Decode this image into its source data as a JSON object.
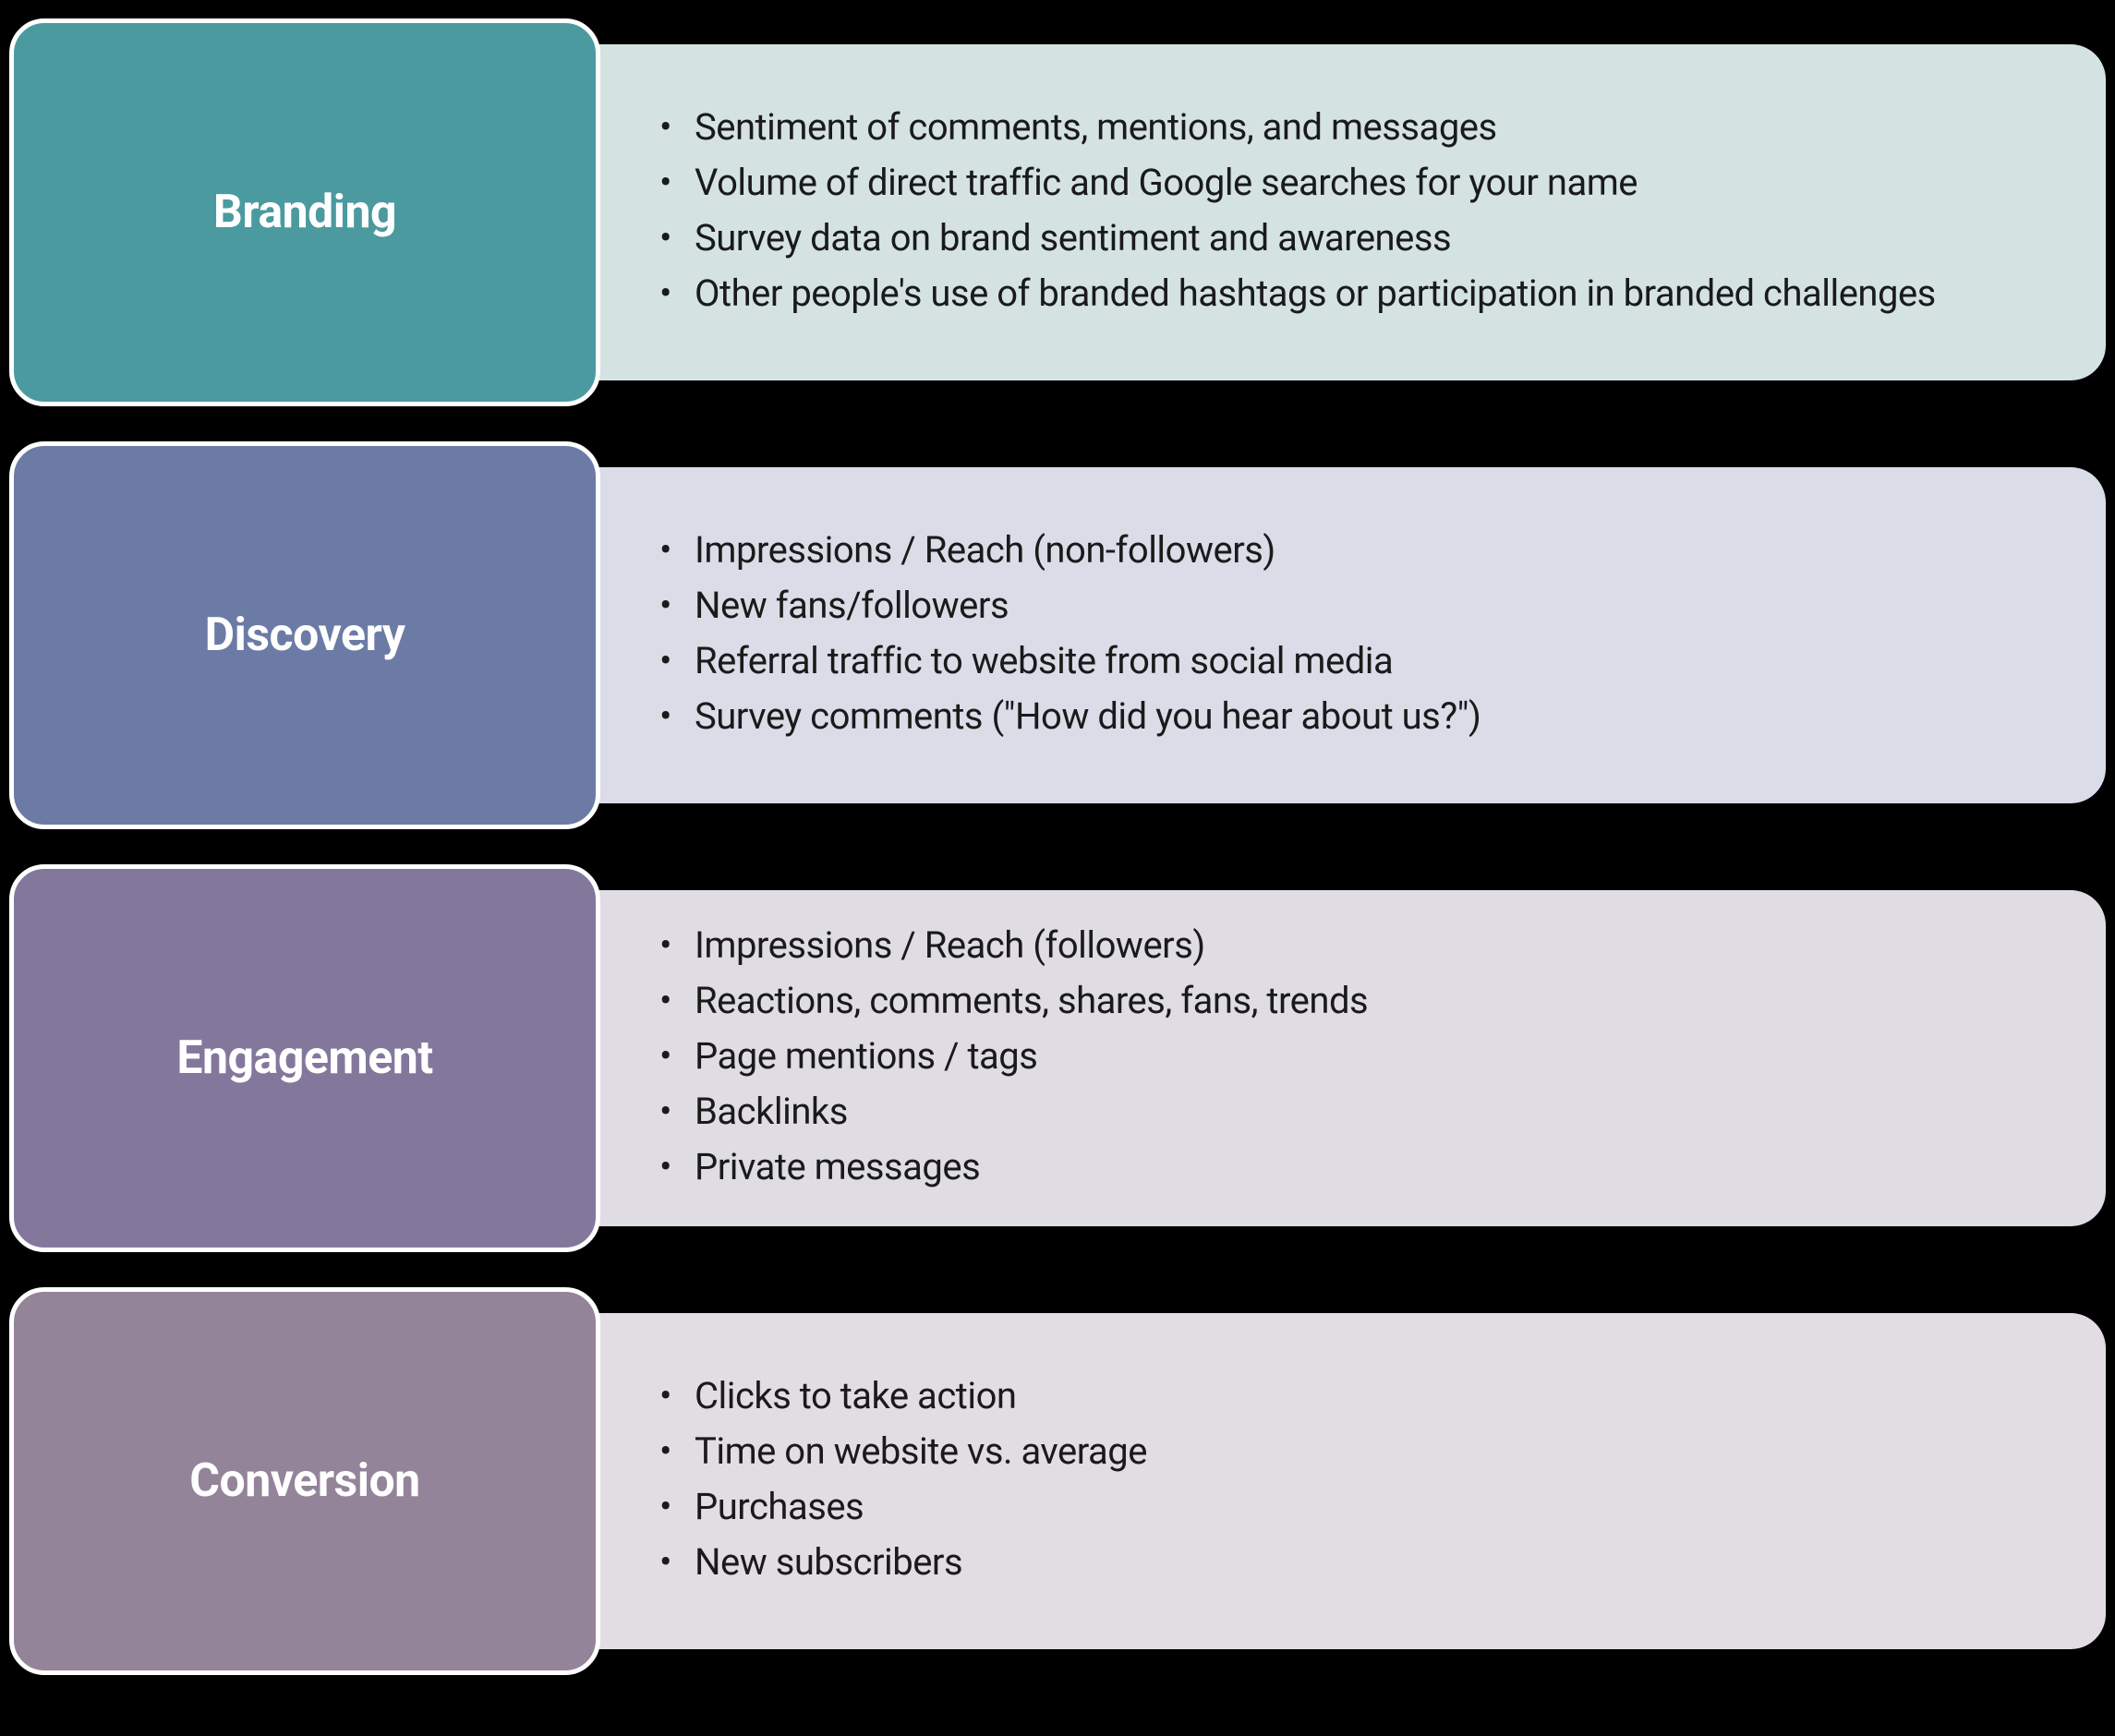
{
  "rows": [
    {
      "id": "branding",
      "label": "Branding",
      "label_bg": "#4b9aa0",
      "content_bg": "#d4e3e2",
      "items": [
        "Sentiment of comments, mentions, and messages",
        "Volume of direct traffic and Google searches for your name",
        "Survey data on brand sentiment and awareness",
        "Other people's use of branded hashtags or participation in branded challenges"
      ]
    },
    {
      "id": "discovery",
      "label": "Discovery",
      "label_bg": "#6c7ba5",
      "content_bg": "#dadde8",
      "items": [
        "Impressions / Reach (non-followers)",
        "New fans/followers",
        "Referral traffic to website from social media",
        "Survey comments (\"How did you hear about us?\")"
      ]
    },
    {
      "id": "engagement",
      "label": "Engagement",
      "label_bg": "#83789c",
      "content_bg": "#dfdce4",
      "items": [
        "Impressions / Reach (followers)",
        "Reactions, comments, shares, fans, trends",
        "Page mentions / tags",
        "Backlinks",
        "Private messages"
      ]
    },
    {
      "id": "conversion",
      "label": "Conversion",
      "label_bg": "#94849a",
      "content_bg": "#e2dde3",
      "items": [
        "Clicks to take action",
        "Time on website vs. average",
        "Purchases",
        "New subscribers"
      ]
    }
  ],
  "border_color": "#ffffff",
  "text_color": "#1a1a1a",
  "label_text_color": "#ffffff",
  "background_color": "#000000",
  "label_fontsize": 50,
  "item_fontsize": 40,
  "border_radius": 38
}
